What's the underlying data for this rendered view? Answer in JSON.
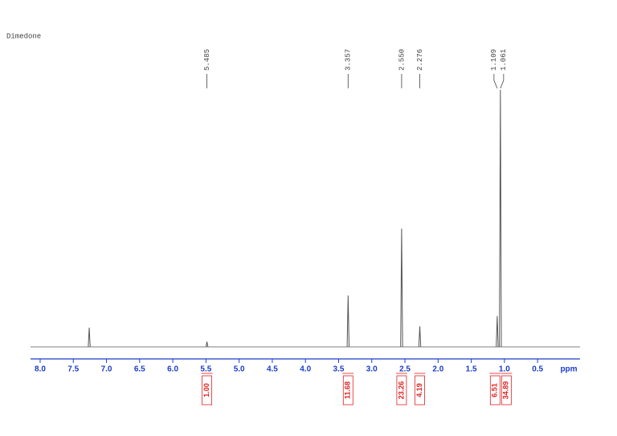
{
  "chart_data": {
    "type": "spectrum",
    "title": "Dimedone",
    "x_label": "ppm",
    "xlim": [
      8.145,
      -0.14
    ],
    "xticks": [
      {
        "value": 8,
        "label": "8.0"
      },
      7.5,
      {
        "value": 7,
        "label": "7.0"
      },
      6.5,
      {
        "value": 6,
        "label": "6.0"
      },
      5.5,
      {
        "value": 5,
        "label": "5.0"
      },
      4.5,
      {
        "value": 4,
        "label": "4.0"
      },
      3.5,
      {
        "value": 3,
        "label": "3.0"
      },
      2.5,
      {
        "value": 2,
        "label": "2.0"
      },
      1.5,
      {
        "value": 1,
        "label": "1.0"
      },
      0.5
    ],
    "ylim": [
      0,
      100
    ],
    "color": "#555555",
    "axis_color": "#1a3ccc",
    "integral_color": "#e02020",
    "peaks": {
      "x": [
        7.26,
        5.485,
        3.357,
        2.55,
        2.276,
        1.109,
        1.061
      ],
      "values": [
        7.5,
        2,
        20,
        46,
        8,
        12,
        100
      ],
      "peak_labels": [
        null,
        "5.485",
        "3.357",
        "2.550",
        "2.276",
        "1.109",
        "1.061"
      ]
    },
    "integrals": {
      "x": [
        5.485,
        3.357,
        2.55,
        2.276,
        1.14,
        0.97
      ],
      "values": [
        1,
        11.68,
        23.26,
        4.19,
        6.51,
        34.89
      ],
      "value_labels": [
        "1.00",
        "11.68",
        "23.26",
        "4.19",
        "6.51",
        "34.89"
      ]
    }
  }
}
